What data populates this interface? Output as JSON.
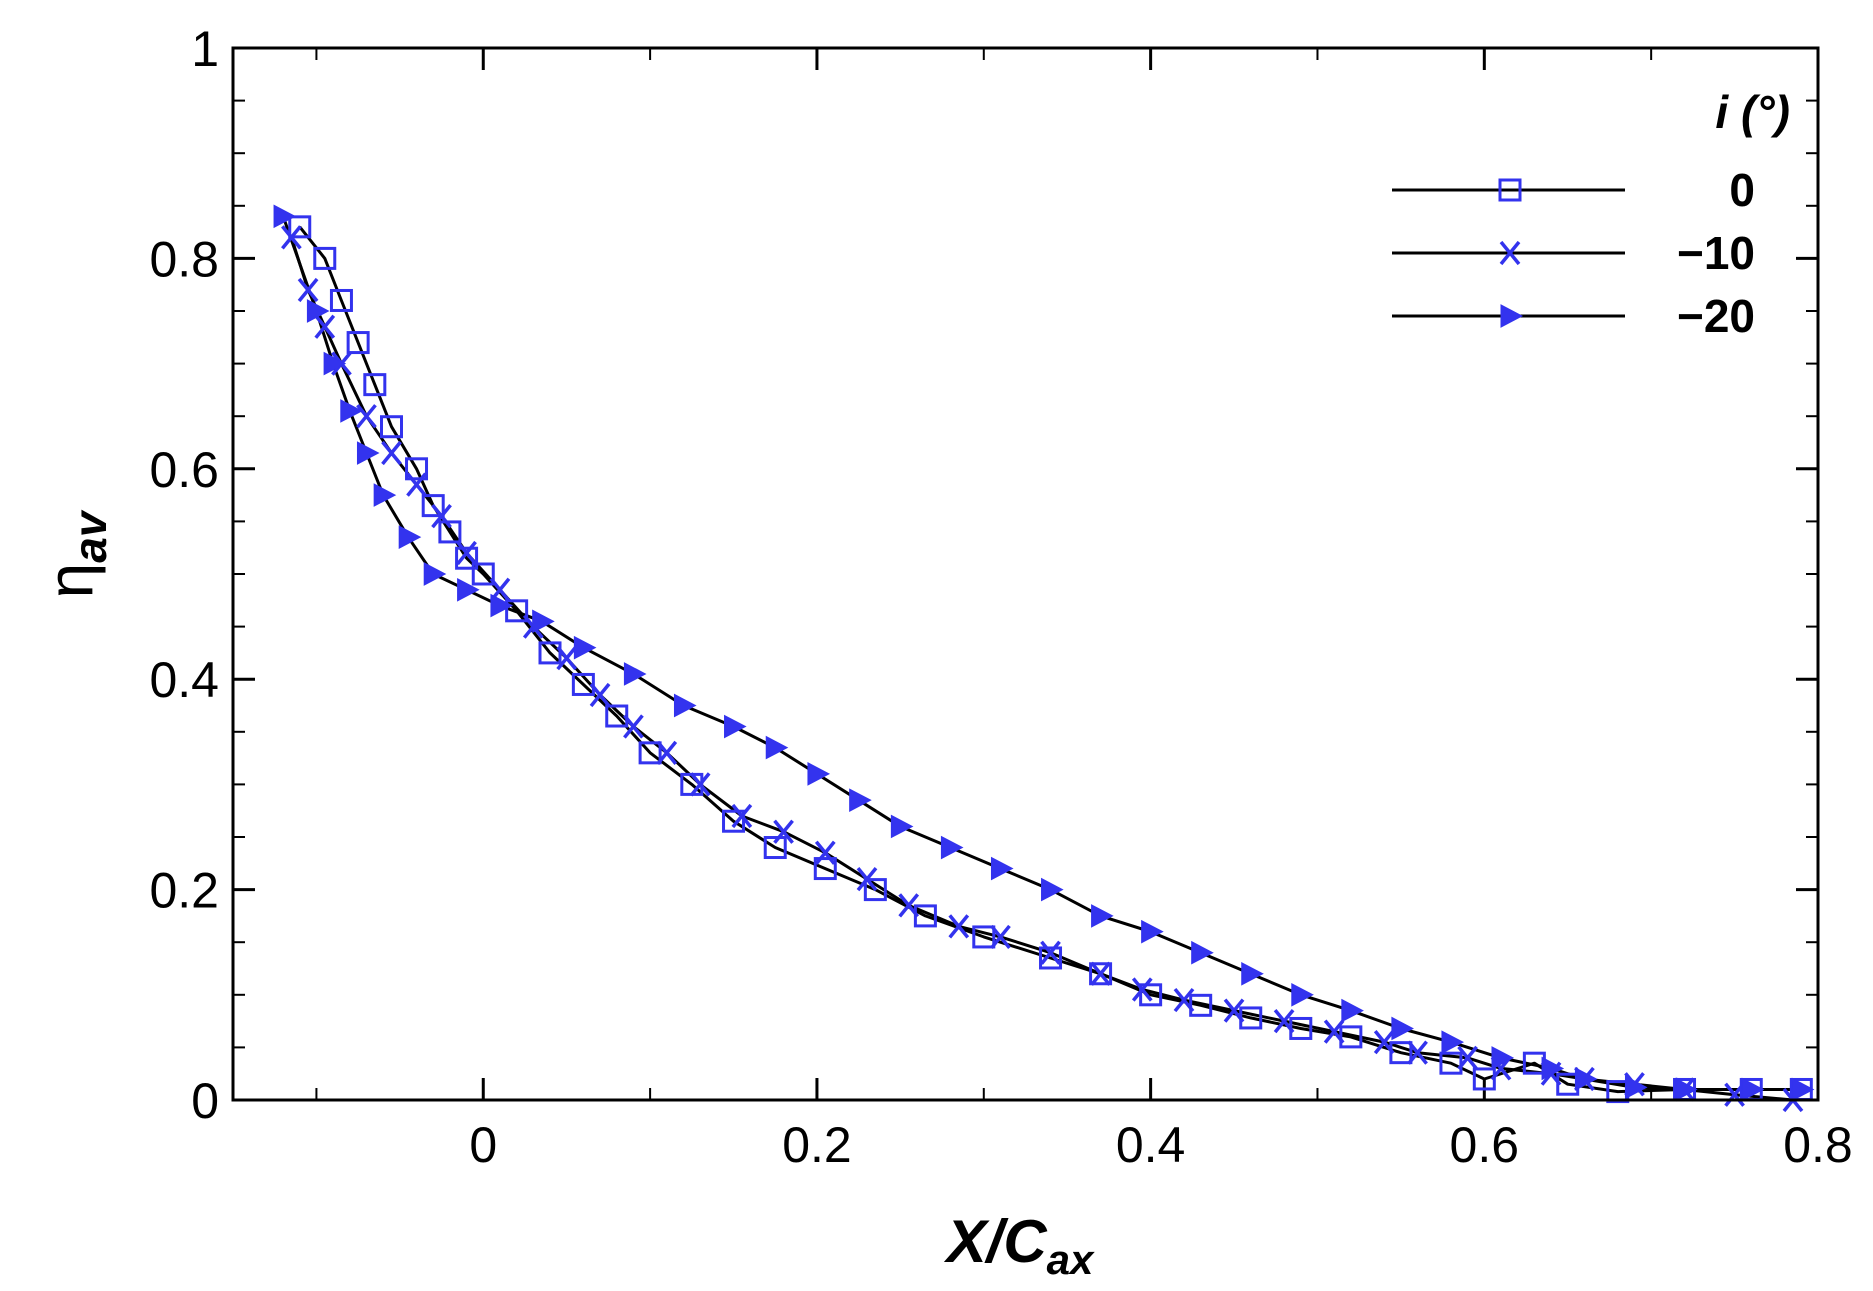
{
  "chart_data": {
    "type": "line",
    "xlabel": "X/C",
    "xlabel_sub": "ax",
    "ylabel": "η",
    "ylabel_sub": "av",
    "xlim": [
      -0.15,
      0.8
    ],
    "ylim": [
      0,
      1
    ],
    "x_ticks": [
      {
        "value": 0,
        "label": "0"
      },
      {
        "value": 0.2,
        "label": "0.2"
      },
      {
        "value": 0.4,
        "label": "0.4"
      },
      {
        "value": 0.6,
        "label": "0.6"
      },
      {
        "value": 0.8,
        "label": "0.8"
      }
    ],
    "y_ticks": [
      {
        "value": 0,
        "label": "0"
      },
      {
        "value": 0.2,
        "label": "0.2"
      },
      {
        "value": 0.4,
        "label": "0.4"
      },
      {
        "value": 0.6,
        "label": "0.6"
      },
      {
        "value": 0.8,
        "label": "0.8"
      },
      {
        "value": 1,
        "label": "1"
      }
    ],
    "x_minor_step": 0.1,
    "y_minor_step": 0.05,
    "grid": false,
    "legend": {
      "title": "i (°)",
      "placement": "top-right"
    },
    "line_color": "#000000",
    "marker_color": "#3333ee",
    "series": [
      {
        "name": "0",
        "marker": "square",
        "x": [
          -0.11,
          -0.095,
          -0.085,
          -0.075,
          -0.065,
          -0.055,
          -0.04,
          -0.03,
          -0.02,
          -0.01,
          0.0,
          0.02,
          0.04,
          0.06,
          0.08,
          0.1,
          0.125,
          0.15,
          0.175,
          0.205,
          0.235,
          0.265,
          0.3,
          0.34,
          0.37,
          0.4,
          0.43,
          0.46,
          0.49,
          0.52,
          0.55,
          0.58,
          0.6,
          0.63,
          0.65,
          0.68,
          0.72,
          0.76,
          0.79
        ],
        "y": [
          0.83,
          0.8,
          0.76,
          0.72,
          0.68,
          0.64,
          0.6,
          0.565,
          0.54,
          0.515,
          0.5,
          0.465,
          0.425,
          0.395,
          0.365,
          0.33,
          0.3,
          0.265,
          0.24,
          0.22,
          0.2,
          0.175,
          0.155,
          0.135,
          0.12,
          0.1,
          0.09,
          0.078,
          0.068,
          0.06,
          0.045,
          0.035,
          0.02,
          0.035,
          0.015,
          0.008,
          0.01,
          0.01,
          0.01
        ]
      },
      {
        "name": "−10",
        "marker": "x",
        "x": [
          -0.115,
          -0.105,
          -0.095,
          -0.085,
          -0.07,
          -0.055,
          -0.04,
          -0.025,
          -0.01,
          0.01,
          0.03,
          0.05,
          0.07,
          0.09,
          0.11,
          0.13,
          0.155,
          0.18,
          0.205,
          0.23,
          0.255,
          0.285,
          0.31,
          0.34,
          0.37,
          0.395,
          0.42,
          0.45,
          0.48,
          0.51,
          0.54,
          0.56,
          0.59,
          0.61,
          0.64,
          0.66,
          0.69,
          0.72,
          0.75,
          0.785
        ],
        "y": [
          0.82,
          0.77,
          0.735,
          0.7,
          0.65,
          0.615,
          0.585,
          0.555,
          0.52,
          0.485,
          0.45,
          0.42,
          0.385,
          0.355,
          0.33,
          0.3,
          0.27,
          0.255,
          0.235,
          0.21,
          0.185,
          0.165,
          0.155,
          0.14,
          0.12,
          0.105,
          0.095,
          0.085,
          0.075,
          0.065,
          0.055,
          0.045,
          0.04,
          0.03,
          0.025,
          0.02,
          0.015,
          0.01,
          0.005,
          0.0
        ]
      },
      {
        "name": "−20",
        "marker": "triangle",
        "x": [
          -0.12,
          -0.1,
          -0.09,
          -0.08,
          -0.07,
          -0.06,
          -0.045,
          -0.03,
          -0.01,
          0.01,
          0.035,
          0.06,
          0.09,
          0.12,
          0.15,
          0.175,
          0.2,
          0.225,
          0.25,
          0.28,
          0.31,
          0.34,
          0.37,
          0.4,
          0.43,
          0.46,
          0.49,
          0.52,
          0.55,
          0.58,
          0.61,
          0.64,
          0.66,
          0.69,
          0.72,
          0.76,
          0.79
        ],
        "y": [
          0.84,
          0.75,
          0.7,
          0.655,
          0.615,
          0.575,
          0.535,
          0.5,
          0.485,
          0.47,
          0.455,
          0.43,
          0.405,
          0.375,
          0.355,
          0.335,
          0.31,
          0.285,
          0.26,
          0.24,
          0.22,
          0.2,
          0.175,
          0.16,
          0.14,
          0.12,
          0.1,
          0.085,
          0.068,
          0.055,
          0.04,
          0.03,
          0.02,
          0.012,
          0.01,
          0.01,
          0.01
        ]
      }
    ]
  }
}
